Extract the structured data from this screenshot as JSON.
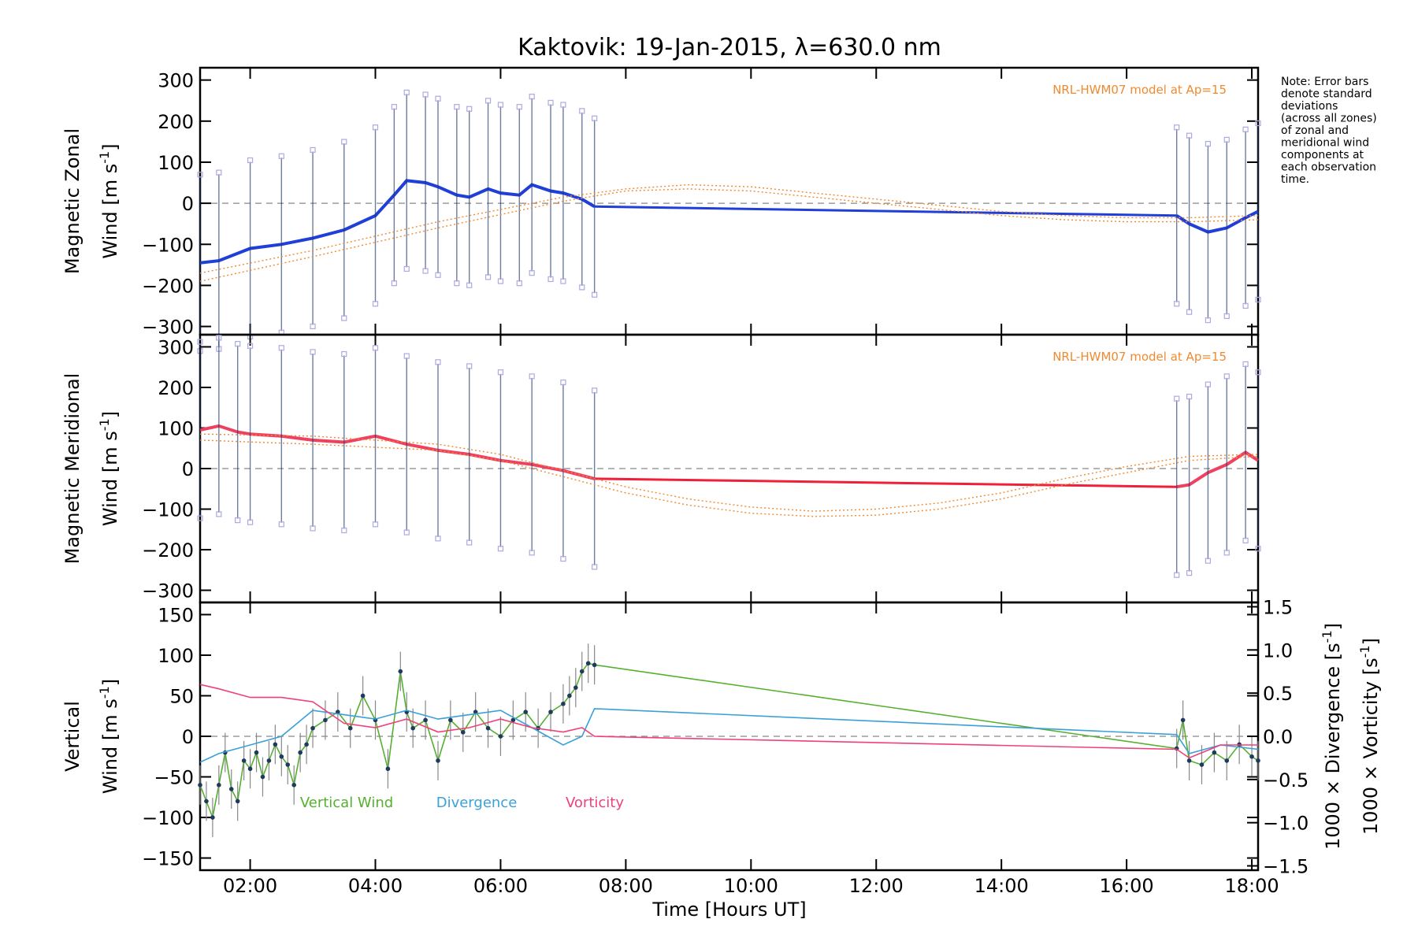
{
  "chart_data": {
    "title": "Kaktovik: 19-Jan-2015, λ=630.0 nm",
    "xlabel": "Time [Hours UT]",
    "xticks": [
      "02:00",
      "04:00",
      "06:00",
      "08:00",
      "10:00",
      "12:00",
      "14:00",
      "16:00",
      "18:00"
    ],
    "xlim_hours": [
      1.2,
      18.1
    ],
    "note": [
      "Note: Error bars",
      "denote standard",
      "deviations",
      "(across all zones)",
      "of zonal and",
      "meridional wind",
      "components at",
      "each observation",
      "time."
    ],
    "panels": [
      {
        "type": "line",
        "ylabel_line1": "Magnetic Zonal",
        "ylabel_line2": "Wind [m s",
        "ylabel_sup": "-1",
        "ylabel_close": "]",
        "ylim": [
          -320,
          330
        ],
        "yticks": [
          "300",
          "200",
          "100",
          "0",
          "−100",
          "−200",
          "−300"
        ],
        "yticks_v": [
          300,
          200,
          100,
          0,
          -100,
          -200,
          -300
        ],
        "model_label": "NRL-HWM07 model at Ap=15",
        "series": [
          {
            "role": "observed",
            "color": "#1f3fd8",
            "x": [
              1.2,
              1.5,
              2.0,
              2.5,
              3.0,
              3.5,
              4.0,
              4.3,
              4.5,
              4.8,
              5.0,
              5.3,
              5.5,
              5.8,
              6.0,
              6.3,
              6.5,
              6.8,
              7.0,
              7.3,
              7.5
            ],
            "y": [
              -145,
              -140,
              -110,
              -100,
              -85,
              -65,
              -30,
              20,
              55,
              50,
              40,
              20,
              15,
              35,
              25,
              20,
              45,
              30,
              25,
              10,
              -8
            ]
          },
          {
            "role": "interpolated",
            "color": "#1f3fd8",
            "x": [
              7.5,
              16.8
            ],
            "y": [
              -8,
              -30
            ]
          },
          {
            "role": "observed",
            "color": "#1f3fd8",
            "x": [
              16.8,
              17.0,
              17.3,
              17.6,
              17.9,
              18.1
            ],
            "y": [
              -30,
              -50,
              -70,
              -60,
              -35,
              -20
            ]
          },
          {
            "role": "model",
            "color": "#f08a30",
            "x": [
              1.2,
              3,
              5,
              7,
              8,
              9,
              10,
              11,
              12,
              13,
              14,
              15,
              16,
              17,
              18.1
            ],
            "y": [
              -190,
              -130,
              -60,
              5,
              30,
              35,
              30,
              15,
              0,
              -15,
              -30,
              -40,
              -45,
              -45,
              -40
            ]
          },
          {
            "role": "model",
            "color": "#f08a30",
            "x": [
              1.2,
              3,
              5,
              7,
              8,
              9,
              10,
              11,
              12,
              13,
              14,
              15,
              16,
              17,
              18.1
            ],
            "y": [
              -170,
              -115,
              -45,
              15,
              35,
              45,
              40,
              25,
              10,
              -5,
              -20,
              -30,
              -35,
              -35,
              -30
            ]
          }
        ]
      },
      {
        "type": "line",
        "ylabel_line1": "Magnetic Meridional",
        "ylabel_line2": "Wind [m s",
        "ylabel_sup": "-1",
        "ylabel_close": "]",
        "ylim": [
          -330,
          330
        ],
        "yticks": [
          "300",
          "200",
          "100",
          "0",
          "−100",
          "−200",
          "−300"
        ],
        "yticks_v": [
          300,
          200,
          100,
          0,
          -100,
          -200,
          -300
        ],
        "model_label": "NRL-HWM07 model at Ap=15",
        "series": [
          {
            "role": "observed",
            "color": "#f04060",
            "x": [
              1.2,
              1.5,
              1.8,
              2.0,
              2.5,
              3.0,
              3.5,
              4.0,
              4.5,
              5.0,
              5.5,
              6.0,
              6.5,
              7.0,
              7.5
            ],
            "y": [
              95,
              105,
              90,
              85,
              80,
              70,
              65,
              80,
              60,
              45,
              35,
              20,
              10,
              -5,
              -25
            ]
          },
          {
            "role": "interpolated",
            "color": "#f0203a",
            "x": [
              7.5,
              16.8
            ],
            "y": [
              -25,
              -45
            ]
          },
          {
            "role": "observed",
            "color": "#f04060",
            "x": [
              16.8,
              17.0,
              17.3,
              17.6,
              17.9,
              18.1
            ],
            "y": [
              -45,
              -40,
              -10,
              10,
              40,
              20
            ]
          },
          {
            "role": "model",
            "color": "#f08a30",
            "x": [
              1.2,
              3,
              5,
              6,
              7,
              8,
              9,
              10,
              11,
              12,
              13,
              14,
              15,
              16,
              17,
              18.1
            ],
            "y": [
              70,
              60,
              45,
              20,
              -20,
              -60,
              -90,
              -110,
              -118,
              -115,
              -100,
              -75,
              -40,
              -10,
              20,
              30
            ]
          },
          {
            "role": "model",
            "color": "#f08a30",
            "x": [
              1.2,
              3,
              5,
              6,
              7,
              8,
              9,
              10,
              11,
              12,
              13,
              14,
              15,
              16,
              17,
              18.1
            ],
            "y": [
              85,
              80,
              60,
              35,
              -5,
              -45,
              -75,
              -95,
              -105,
              -100,
              -85,
              -60,
              -25,
              5,
              30,
              35
            ]
          }
        ]
      },
      {
        "type": "line",
        "ylabel_line1": "Vertical",
        "ylabel_line2": "Wind [m s",
        "ylabel_sup": "-1",
        "ylabel_close": "]",
        "ylabel_color": "#55b030",
        "ylim": [
          -165,
          165
        ],
        "yticks": [
          "150",
          "100",
          "50",
          "0",
          "−50",
          "−100",
          "−150"
        ],
        "yticks_v": [
          150,
          100,
          50,
          0,
          -50,
          -100,
          -150
        ],
        "y2lim": [
          -1.55,
          1.55
        ],
        "y2ticks": [
          "1.5",
          "1.0",
          "0.5",
          "0.0",
          "−0.5",
          "−1.0",
          "−1.5"
        ],
        "y2ticks_v": [
          1.5,
          1.0,
          0.5,
          0.0,
          -0.5,
          -1.0,
          -1.5
        ],
        "y2label_div": "1000 × Divergence [s",
        "y2label_vort": "1000 × Vorticity [s",
        "y2label_sup": "-1",
        "y2label_close": "]",
        "div_color": "#3aa0d8",
        "vort_color": "#f0407a",
        "legend": [
          {
            "name": "Vertical Wind",
            "color": "#55b030"
          },
          {
            "name": "Divergence",
            "color": "#3aa0d8"
          },
          {
            "name": "Vorticity",
            "color": "#f0407a"
          }
        ],
        "series": [
          {
            "name": "Vertical Wind",
            "axis": "left",
            "color": "#55b030",
            "x": [
              1.2,
              1.3,
              1.4,
              1.5,
              1.6,
              1.7,
              1.8,
              1.9,
              2.0,
              2.1,
              2.2,
              2.3,
              2.4,
              2.5,
              2.6,
              2.7,
              2.8,
              2.9,
              3.0,
              3.2,
              3.4,
              3.6,
              3.8,
              4.0,
              4.2,
              4.4,
              4.5,
              4.6,
              4.8,
              5.0,
              5.2,
              5.4,
              5.6,
              5.8,
              6.0,
              6.2,
              6.4,
              6.6,
              6.8,
              7.0,
              7.1,
              7.2,
              7.3,
              7.4,
              7.5,
              16.8,
              16.9,
              17.0,
              17.2,
              17.4,
              17.6,
              17.8,
              18.0,
              18.1
            ],
            "y": [
              -60,
              -80,
              -100,
              -60,
              -20,
              -65,
              -80,
              -30,
              -40,
              -20,
              -50,
              -30,
              -10,
              -25,
              -35,
              -60,
              -20,
              -10,
              10,
              20,
              30,
              10,
              50,
              20,
              -40,
              80,
              30,
              10,
              20,
              -30,
              20,
              5,
              30,
              10,
              0,
              20,
              30,
              10,
              30,
              40,
              50,
              60,
              80,
              90,
              88,
              -15,
              20,
              -30,
              -35,
              -20,
              -30,
              -10,
              -25,
              -30
            ]
          },
          {
            "name": "Divergence",
            "axis": "right",
            "color": "#3aa0d8",
            "x": [
              1.2,
              1.5,
              2.0,
              2.5,
              3.0,
              3.5,
              4.0,
              4.5,
              5.0,
              5.5,
              6.0,
              6.5,
              7.0,
              7.3,
              7.5,
              16.8,
              17.0,
              17.5,
              18.1
            ],
            "y": [
              -0.3,
              -0.2,
              -0.1,
              0.0,
              0.3,
              0.25,
              0.2,
              0.3,
              0.2,
              0.25,
              0.3,
              0.1,
              -0.1,
              0.0,
              0.32,
              0.02,
              -0.2,
              -0.1,
              -0.15
            ]
          },
          {
            "name": "Vorticity",
            "axis": "right",
            "color": "#f0407a",
            "x": [
              1.2,
              1.5,
              2.0,
              2.5,
              3.0,
              3.5,
              4.0,
              4.5,
              5.0,
              5.5,
              6.0,
              6.5,
              7.0,
              7.3,
              7.5,
              16.8,
              17.0,
              17.5,
              18.1
            ],
            "y": [
              0.6,
              0.55,
              0.45,
              0.45,
              0.4,
              0.15,
              0.1,
              0.2,
              0.05,
              0.1,
              0.2,
              0.1,
              0.05,
              0.1,
              0.0,
              -0.15,
              -0.25,
              -0.1,
              -0.1
            ]
          }
        ]
      }
    ]
  }
}
